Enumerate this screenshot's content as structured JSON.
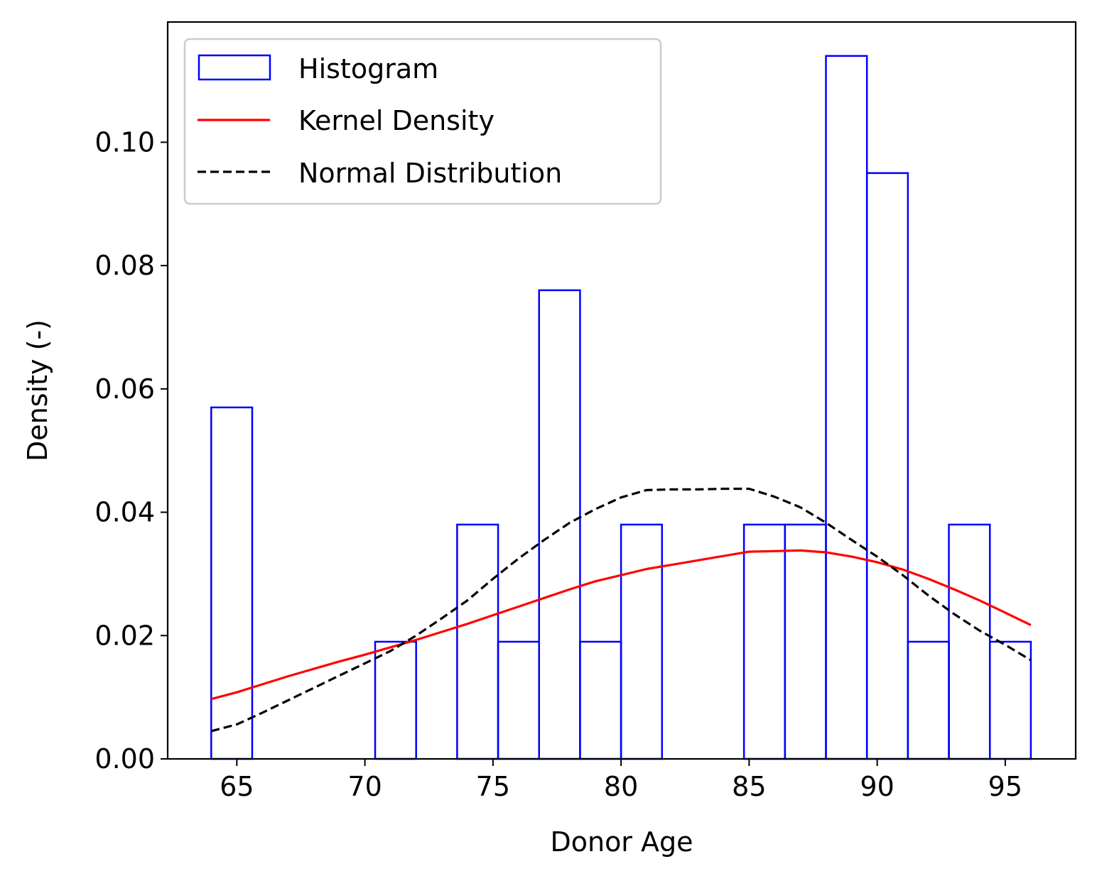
{
  "chart_data": {
    "type": "histogram",
    "xlabel": "Donor Age",
    "ylabel": "Density (-)",
    "xlim": [
      62.3,
      97.75
    ],
    "ylim": [
      0,
      0.1195
    ],
    "x_ticks": [
      65,
      70,
      75,
      80,
      85,
      90,
      95
    ],
    "x_tick_labels": [
      "65",
      "70",
      "75",
      "80",
      "85",
      "90",
      "95"
    ],
    "y_ticks": [
      0.0,
      0.02,
      0.04,
      0.06,
      0.08,
      0.1
    ],
    "y_tick_labels": [
      "0.00",
      "0.02",
      "0.04",
      "0.06",
      "0.08",
      "0.10"
    ],
    "grid": false,
    "legend_position": "upper-left",
    "histogram": {
      "name": "Histogram",
      "color": "#0000ff",
      "bin_edges": [
        64.0,
        65.6,
        67.2,
        68.8,
        70.4,
        72.0,
        73.6,
        75.2,
        76.8,
        78.4,
        80.0,
        81.6,
        83.2,
        84.8,
        86.4,
        88.0,
        89.6,
        91.2,
        92.8,
        94.4,
        96.0
      ],
      "densities": [
        0.057,
        0,
        0,
        0,
        0.019,
        0,
        0.038,
        0.019,
        0.076,
        0.019,
        0.038,
        0,
        0,
        0.038,
        0.038,
        0.114,
        0.095,
        0.019,
        0.038,
        0.019
      ]
    },
    "series": [
      {
        "name": "Kernel Density",
        "color": "#ff0000",
        "style": "solid",
        "x": [
          64,
          65,
          66,
          67,
          68,
          69,
          70,
          71,
          72,
          73,
          74,
          75,
          76,
          77,
          78,
          79,
          80,
          81,
          82,
          83,
          84,
          85,
          86,
          87,
          88,
          89,
          90,
          91,
          92,
          93,
          94,
          95,
          96
        ],
        "y": [
          0.0097,
          0.0108,
          0.0121,
          0.0134,
          0.0146,
          0.0158,
          0.0169,
          0.0181,
          0.0193,
          0.0206,
          0.0219,
          0.0233,
          0.0247,
          0.0261,
          0.0275,
          0.0288,
          0.0298,
          0.0308,
          0.0315,
          0.0322,
          0.0329,
          0.0336,
          0.0337,
          0.0338,
          0.0335,
          0.0328,
          0.0319,
          0.0307,
          0.0292,
          0.0275,
          0.0257,
          0.0237,
          0.0217
        ]
      },
      {
        "name": "Normal Distribution",
        "color": "#000000",
        "style": "dashed",
        "x": [
          64,
          65,
          66,
          67,
          68,
          69,
          70,
          71,
          72,
          73,
          74,
          75,
          76,
          77,
          78,
          79,
          80,
          81,
          82,
          83,
          84,
          85,
          86,
          87,
          88,
          89,
          90,
          91,
          92,
          93,
          94,
          95,
          96
        ],
        "y": [
          0.0045,
          0.0056,
          0.0075,
          0.0095,
          0.0115,
          0.0135,
          0.0155,
          0.0175,
          0.02,
          0.0228,
          0.0257,
          0.0292,
          0.0325,
          0.0355,
          0.0383,
          0.0405,
          0.0424,
          0.0436,
          0.0437,
          0.0437,
          0.0438,
          0.0438,
          0.0425,
          0.0408,
          0.0383,
          0.0355,
          0.0328,
          0.0298,
          0.0265,
          0.0235,
          0.0208,
          0.0185,
          0.016
        ]
      }
    ]
  }
}
